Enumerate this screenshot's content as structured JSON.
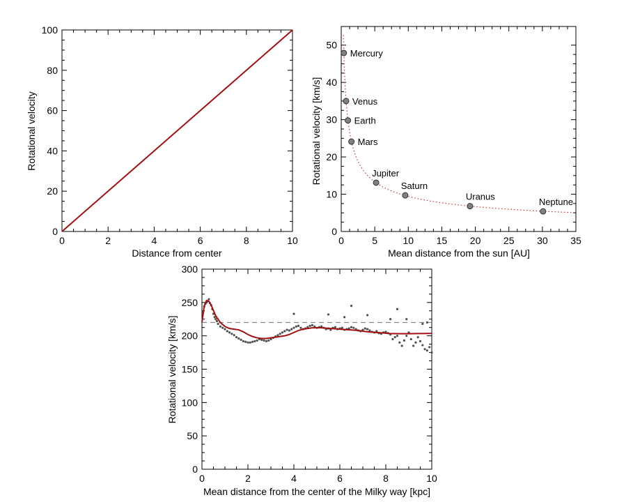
{
  "chart_data": [
    {
      "type": "line",
      "xlabel": "Distance from center",
      "ylabel": "Rotational velocity",
      "xlim": [
        0,
        10
      ],
      "ylim": [
        0,
        100
      ],
      "x_ticks": [
        "0",
        "2",
        "4",
        "6",
        "8",
        "10"
      ],
      "y_ticks": [
        "0",
        "20",
        "40",
        "60",
        "80",
        "100"
      ],
      "line_color": "#a01010",
      "series": [
        {
          "x": [
            0,
            10
          ],
          "y": [
            0,
            100
          ]
        }
      ]
    },
    {
      "type": "scatter",
      "xlabel": "Mean distance from the sun [AU]",
      "ylabel": "Rotational velocity [km/s]",
      "xlim": [
        0,
        35
      ],
      "ylim": [
        0,
        55
      ],
      "x_ticks": [
        "0",
        "5",
        "10",
        "15",
        "20",
        "25",
        "30",
        "35"
      ],
      "y_ticks": [
        "0",
        "10",
        "20",
        "30",
        "40",
        "50"
      ],
      "point_color": "#808080",
      "curve_color": "#c03030",
      "curve_note": "dotted Keplerian fit v ≈ 29.8 / sqrt(r)",
      "points": [
        {
          "name": "Mercury",
          "x": 0.39,
          "y": 47.9
        },
        {
          "name": "Venus",
          "x": 0.72,
          "y": 35.0
        },
        {
          "name": "Earth",
          "x": 1.0,
          "y": 29.8
        },
        {
          "name": "Mars",
          "x": 1.52,
          "y": 24.1
        },
        {
          "name": "Jupiter",
          "x": 5.2,
          "y": 13.1
        },
        {
          "name": "Saturn",
          "x": 9.54,
          "y": 9.7
        },
        {
          "name": "Uranus",
          "x": 19.2,
          "y": 6.8
        },
        {
          "name": "Neptune",
          "x": 30.1,
          "y": 5.4
        }
      ]
    },
    {
      "type": "scatter",
      "xlabel": "Mean distance from the center of the Milky way [kpc]",
      "ylabel": "Rotational velocity [km/s]",
      "xlim": [
        0,
        10
      ],
      "ylim": [
        0,
        300
      ],
      "x_ticks": [
        "0",
        "2",
        "4",
        "6",
        "8",
        "10"
      ],
      "y_ticks": [
        "0",
        "50",
        "100",
        "150",
        "200",
        "250",
        "300"
      ],
      "dashed_reference": 220,
      "point_color": "#505050",
      "curve_color": "#a01010",
      "fit_curve": {
        "x": [
          0,
          0.1,
          0.2,
          0.3,
          0.4,
          0.5,
          0.6,
          0.8,
          1.0,
          1.2,
          1.4,
          1.6,
          1.8,
          2.0,
          2.2,
          2.4,
          2.6,
          2.8,
          3.0,
          3.2,
          3.4,
          3.6,
          3.8,
          4.0,
          4.2,
          4.4,
          4.6,
          4.8,
          5.0,
          5.2,
          5.4,
          5.6,
          5.8,
          6.0,
          6.2,
          6.4,
          6.6,
          6.8,
          7.0,
          7.2,
          7.4,
          7.6,
          7.8,
          8.0,
          8.2,
          8.4,
          8.6,
          8.8,
          9.0,
          9.2,
          9.4,
          9.6,
          9.8,
          10.0
        ],
        "y": [
          220,
          245,
          253,
          252,
          246,
          238,
          230,
          220,
          214,
          211,
          210,
          209,
          206,
          202,
          199,
          197,
          196,
          196,
          197,
          198,
          199,
          200,
          202,
          205,
          208,
          210,
          211,
          212,
          212,
          212,
          211.5,
          211,
          210.5,
          210,
          209.5,
          209,
          208.5,
          208,
          207,
          206,
          205.5,
          205,
          204.5,
          204,
          203.5,
          203.3,
          203.2,
          203.2,
          203.2,
          203.3,
          203.4,
          203.5,
          203.6,
          203.6
        ]
      },
      "scatter_points": {
        "x": [
          0.05,
          0.1,
          0.15,
          0.2,
          0.25,
          0.3,
          0.35,
          0.4,
          0.45,
          0.5,
          0.55,
          0.6,
          0.65,
          0.7,
          0.8,
          0.9,
          1.0,
          1.1,
          1.2,
          1.3,
          1.4,
          1.5,
          1.6,
          1.7,
          1.8,
          1.9,
          2.0,
          2.1,
          2.2,
          2.3,
          2.4,
          2.5,
          2.6,
          2.7,
          2.8,
          2.9,
          3.0,
          3.1,
          3.2,
          3.3,
          3.4,
          3.5,
          3.6,
          3.7,
          3.8,
          3.9,
          4.0,
          4.0,
          4.1,
          4.2,
          4.3,
          4.4,
          4.5,
          4.6,
          4.7,
          4.8,
          4.9,
          5.0,
          5.1,
          5.2,
          5.3,
          5.4,
          5.5,
          5.6,
          5.7,
          5.8,
          5.9,
          6.0,
          6.1,
          6.2,
          6.3,
          6.4,
          6.5,
          6.6,
          6.7,
          6.8,
          6.9,
          7.0,
          7.1,
          7.2,
          7.3,
          7.4,
          7.5,
          7.6,
          7.7,
          7.8,
          7.9,
          8.0,
          8.1,
          8.2,
          8.3,
          8.4,
          8.5,
          8.6,
          8.7,
          8.8,
          8.9,
          9.0,
          9.1,
          9.2,
          9.3,
          9.4,
          9.5,
          9.6,
          9.7,
          9.8,
          9.9,
          10.0,
          5.5,
          6.2,
          6.5,
          7.2,
          8.2,
          8.5,
          8.9,
          9.6,
          9.8
        ],
        "y": [
          235,
          244,
          248,
          250,
          252,
          255,
          249,
          246,
          240,
          233,
          228,
          225,
          222,
          218,
          214,
          212,
          210,
          207,
          205,
          203,
          201,
          198,
          196,
          194,
          192,
          191,
          190,
          190,
          191,
          192,
          193,
          195,
          194,
          193,
          192,
          193,
          195,
          197,
          199,
          201,
          203,
          205,
          207,
          209,
          208,
          210,
          212,
          233,
          214,
          215,
          212,
          210,
          211,
          213,
          215,
          216,
          214,
          212,
          213,
          214,
          212,
          210,
          211,
          209,
          212,
          213,
          210,
          211,
          212,
          209,
          210,
          211,
          213,
          212,
          210,
          208,
          207,
          209,
          211,
          210,
          208,
          206,
          205,
          207,
          204,
          203,
          205,
          206,
          204,
          202,
          195,
          198,
          200,
          190,
          185,
          193,
          200,
          205,
          195,
          185,
          190,
          198,
          192,
          186,
          180,
          178,
          183,
          175,
          232,
          228,
          245,
          231,
          225,
          240,
          225,
          218,
          220
        ]
      }
    }
  ]
}
